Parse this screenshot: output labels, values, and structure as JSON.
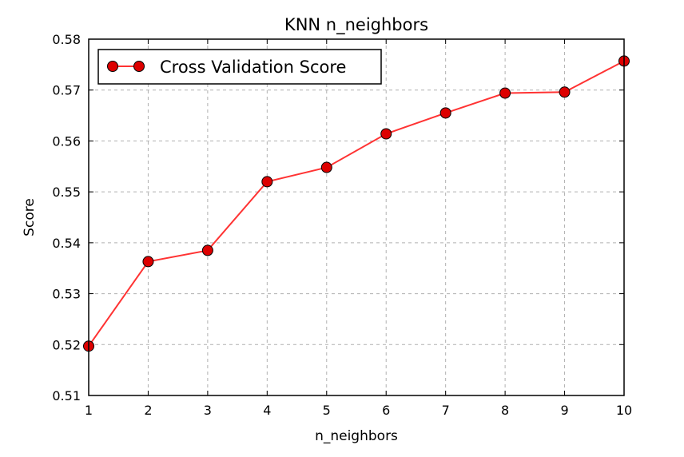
{
  "chart_data": {
    "type": "line",
    "title": "KNN n_neighbors",
    "xlabel": "n_neighbors",
    "ylabel": "Score",
    "xlim": [
      1,
      10
    ],
    "ylim": [
      0.51,
      0.58
    ],
    "xticks": [
      "1",
      "2",
      "3",
      "4",
      "5",
      "6",
      "7",
      "8",
      "9",
      "10"
    ],
    "yticks": [
      "0.51",
      "0.52",
      "0.53",
      "0.54",
      "0.55",
      "0.56",
      "0.57",
      "0.58"
    ],
    "grid": true,
    "legend_position": "top-left",
    "series": [
      {
        "name": "Cross Validation Score",
        "color": "#ff3333",
        "marker_color": "#dd0000",
        "x": [
          1,
          2,
          3,
          4,
          5,
          6,
          7,
          8,
          9,
          10
        ],
        "y": [
          0.5197,
          0.5363,
          0.5385,
          0.552,
          0.5548,
          0.5614,
          0.5655,
          0.5694,
          0.5696,
          0.5757
        ]
      }
    ]
  }
}
